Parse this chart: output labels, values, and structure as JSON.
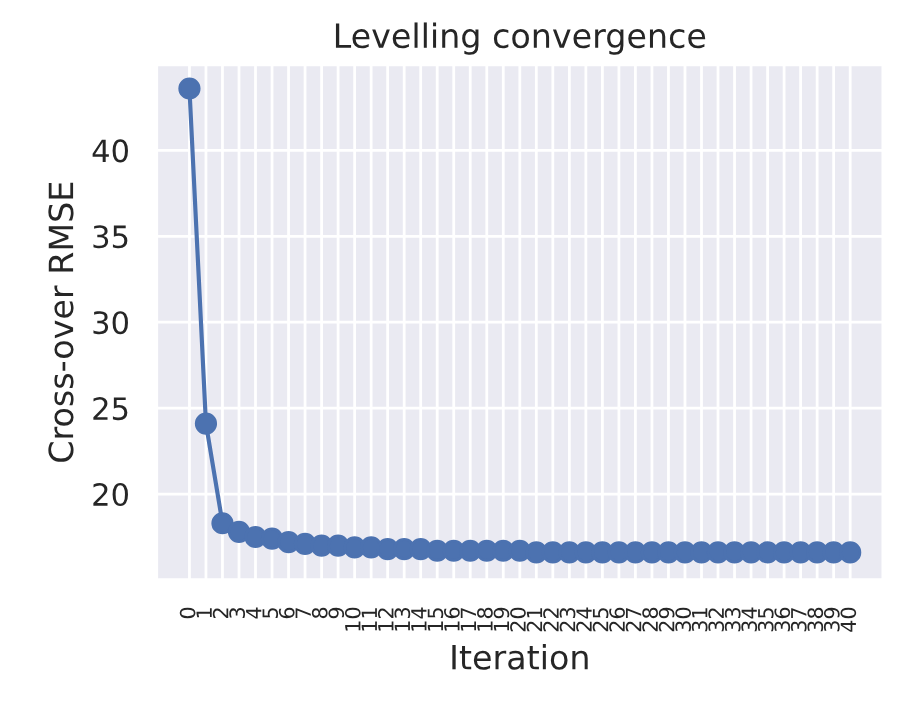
{
  "chart_data": {
    "type": "line",
    "title": "Levelling convergence",
    "xlabel": "Iteration",
    "ylabel": "Cross-over RMSE",
    "categories": [
      "0",
      "1",
      "2",
      "3",
      "4",
      "5",
      "6",
      "7",
      "8",
      "9",
      "10",
      "11",
      "12",
      "13",
      "14",
      "15",
      "16",
      "17",
      "18",
      "19",
      "20",
      "21",
      "22",
      "23",
      "24",
      "25",
      "26",
      "27",
      "28",
      "29",
      "30",
      "31",
      "32",
      "33",
      "34",
      "35",
      "36",
      "37",
      "38",
      "39",
      "40"
    ],
    "series": [
      {
        "color": "#4c72b0",
        "values": [
          43.6,
          24.1,
          18.3,
          17.8,
          17.5,
          17.4,
          17.2,
          17.1,
          17.0,
          17.0,
          16.9,
          16.9,
          16.8,
          16.8,
          16.8,
          16.7,
          16.7,
          16.7,
          16.7,
          16.7,
          16.7,
          16.6,
          16.6,
          16.6,
          16.6,
          16.6,
          16.6,
          16.6,
          16.6,
          16.6,
          16.6,
          16.6,
          16.6,
          16.6,
          16.6,
          16.6,
          16.6,
          16.6,
          16.6,
          16.6,
          16.6
        ]
      }
    ],
    "ylim": [
      15.0,
      45.0
    ],
    "yticks": [
      20,
      25,
      30,
      35,
      40
    ],
    "grid": true,
    "marker": "circle",
    "line_style": "solid"
  }
}
